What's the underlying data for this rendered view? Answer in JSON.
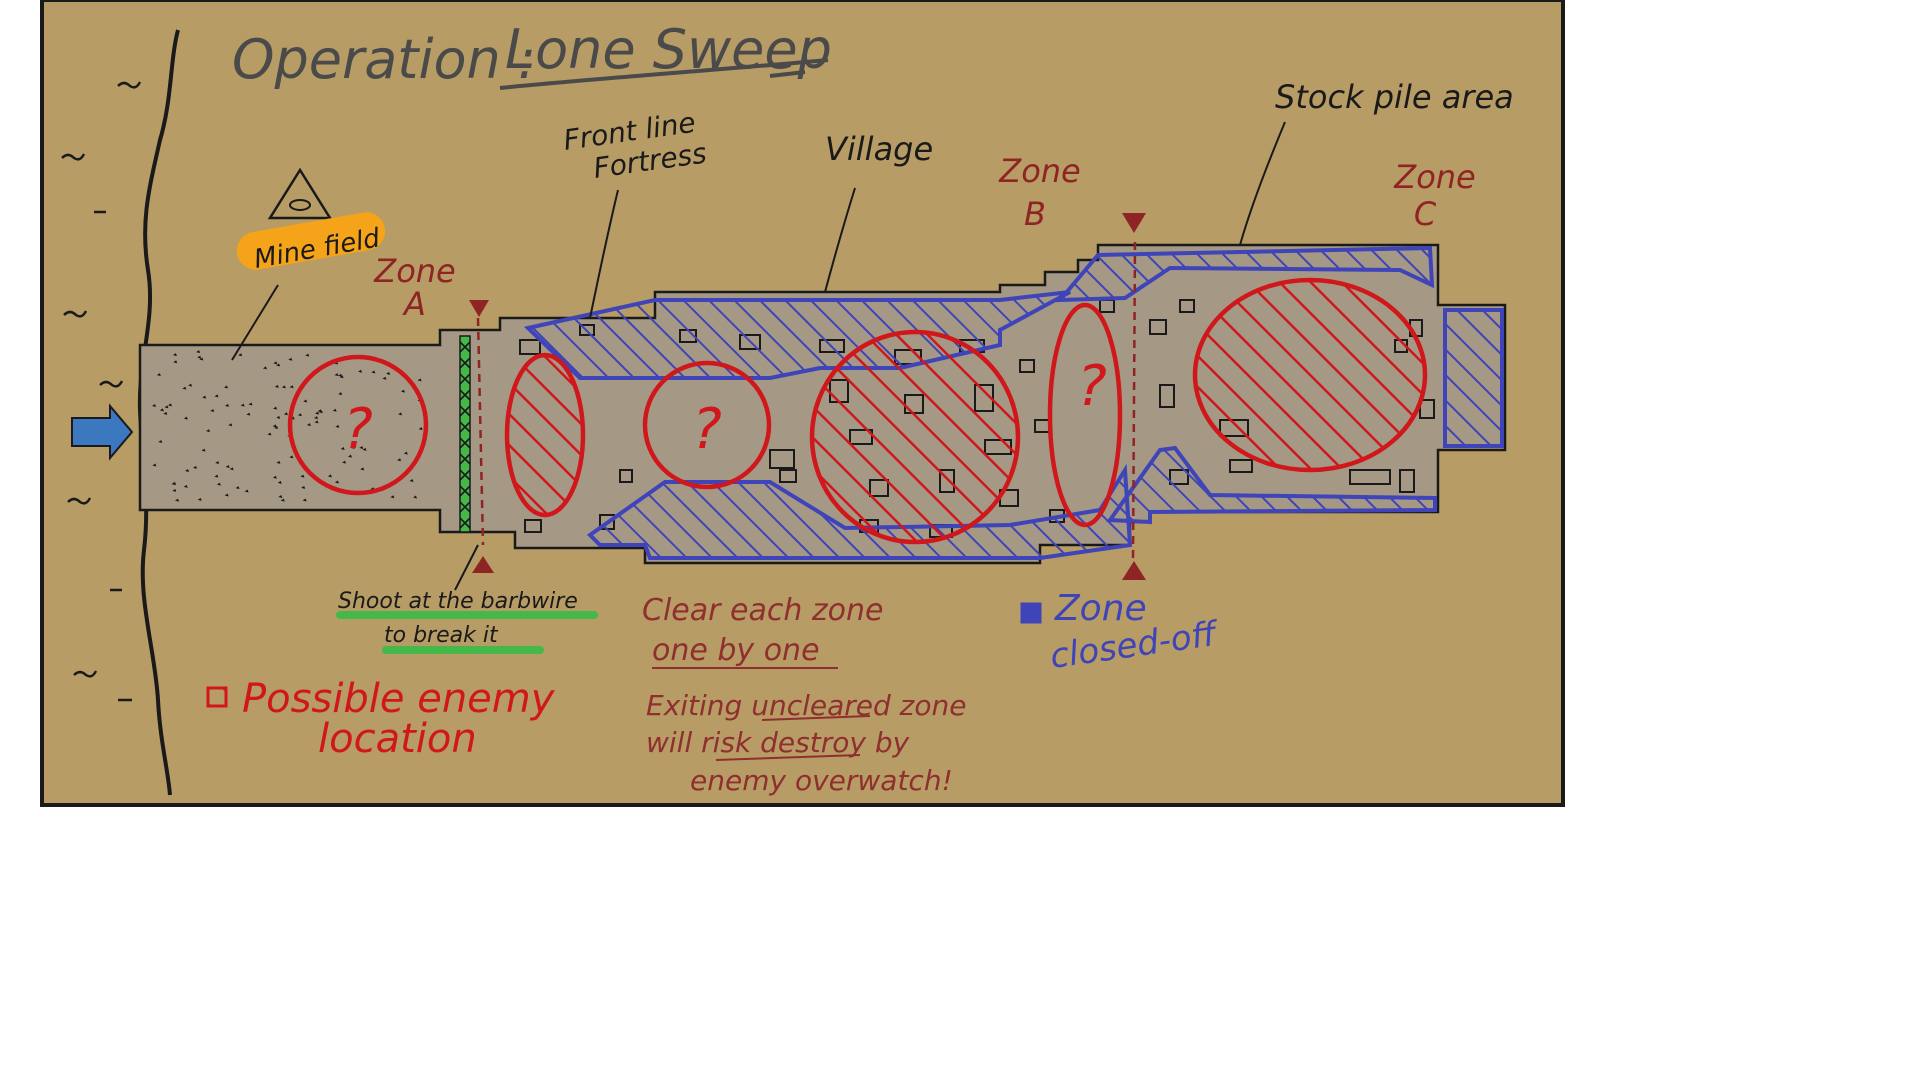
{
  "title": {
    "prefix": "Operation :",
    "name": "Lone Sweep"
  },
  "labels": {
    "mine_field": "Mine field",
    "front_line_1": "Front line",
    "front_line_2": "Fortress",
    "village": "Village",
    "stockpile": "Stock pile  area",
    "zone_a_1": "Zone",
    "zone_a_2": "A",
    "zone_b_1": "Zone",
    "zone_b_2": "B",
    "zone_c_1": "Zone",
    "zone_c_2": "C",
    "unknown_mark": "?"
  },
  "notes": {
    "barbwire_1": "Shoot at the barbwire",
    "barbwire_2": "to break it",
    "clear_1": "Clear each zone",
    "clear_2": "one by one",
    "exit_1": "Exiting uncleared zone",
    "exit_2": "will risk destroy by",
    "exit_3": "enemy overwatch!"
  },
  "legend": {
    "enemy_1": "Possible enemy",
    "enemy_2": "location",
    "closed_1": "Zone",
    "closed_2": "closed-off"
  },
  "colors": {
    "ground": "#b79c65",
    "road": "#a59985",
    "outline": "#1a1a1a",
    "enemy": "#d0171b",
    "closed": "#3f44b8",
    "zone_label": "#8f2424",
    "note": "#8f2f2f",
    "title": "#4a4a4a",
    "barbwire": "#45b84a",
    "highlight_orange": "#f5a41a",
    "arrow": "#3b78c0"
  },
  "icons": {
    "mine": "mine-warning-icon",
    "entry": "entry-arrow-icon"
  }
}
